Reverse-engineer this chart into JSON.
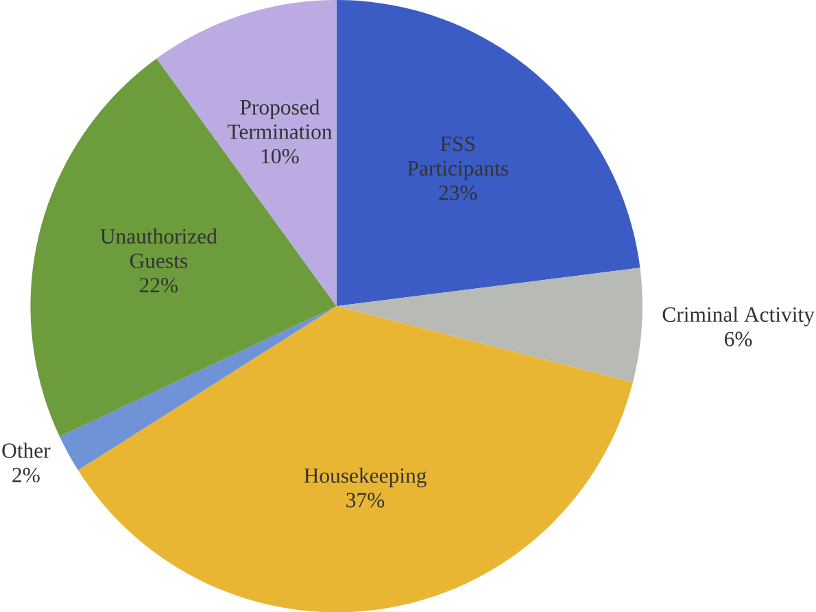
{
  "chart_data": {
    "type": "pie",
    "categories": [
      "FSS Participants",
      "Criminal Activity",
      "Housekeeping",
      "Other",
      "Unauthorized Guests",
      "Proposed Termination"
    ],
    "values": [
      23,
      6,
      37,
      2,
      22,
      10
    ],
    "value_labels": [
      "23%",
      "6%",
      "37%",
      "2%",
      "22%",
      "10%"
    ],
    "colors": [
      "#3b5cc4",
      "#b8bab6",
      "#e9b634",
      "#6f93d6",
      "#6d9c3c",
      "#bcabe2"
    ]
  }
}
